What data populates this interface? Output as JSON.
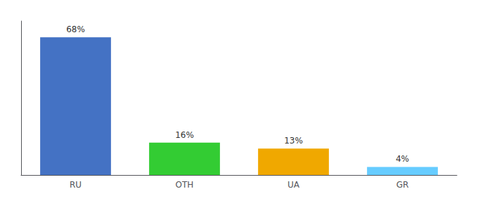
{
  "chart_data": {
    "type": "bar",
    "categories": [
      "RU",
      "OTH",
      "UA",
      "GR"
    ],
    "values": [
      68,
      16,
      13,
      4
    ],
    "value_labels": [
      "68%",
      "16%",
      "13%",
      "4%"
    ],
    "colors": [
      "#4472c4",
      "#33cc33",
      "#f0a800",
      "#66ccff"
    ],
    "ylim": [
      0,
      76
    ],
    "data_labels": true,
    "tick_labels": "x",
    "grid": false
  }
}
